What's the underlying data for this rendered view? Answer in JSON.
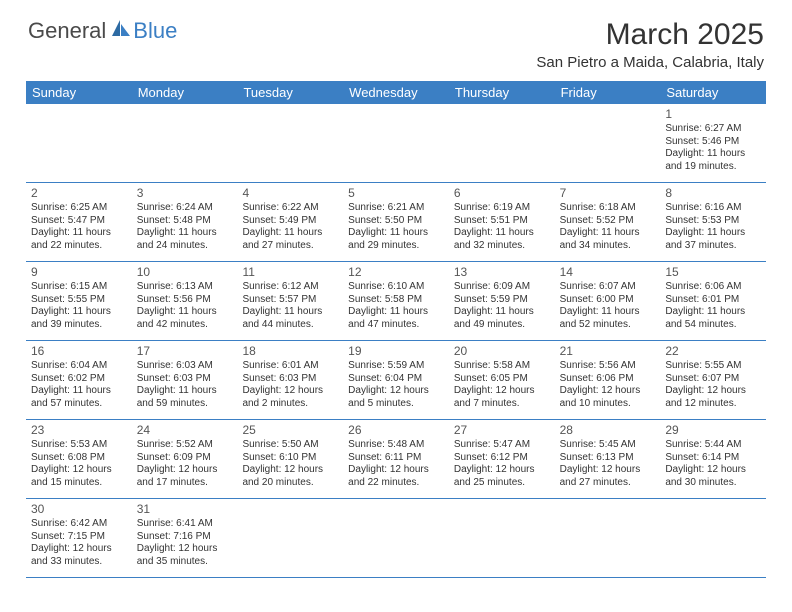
{
  "brand": {
    "part1": "General",
    "part2": "Blue"
  },
  "title": "March 2025",
  "location": "San Pietro a Maida, Calabria, Italy",
  "colors": {
    "header_bg": "#3b7fc4",
    "header_text": "#ffffff",
    "border": "#3b7fc4",
    "text": "#333333",
    "brand_blue": "#3b7fc4",
    "brand_gray": "#4a4a4a"
  },
  "day_names": [
    "Sunday",
    "Monday",
    "Tuesday",
    "Wednesday",
    "Thursday",
    "Friday",
    "Saturday"
  ],
  "weeks": [
    [
      null,
      null,
      null,
      null,
      null,
      null,
      {
        "n": "1",
        "sr": "Sunrise: 6:27 AM",
        "ss": "Sunset: 5:46 PM",
        "d1": "Daylight: 11 hours",
        "d2": "and 19 minutes."
      }
    ],
    [
      {
        "n": "2",
        "sr": "Sunrise: 6:25 AM",
        "ss": "Sunset: 5:47 PM",
        "d1": "Daylight: 11 hours",
        "d2": "and 22 minutes."
      },
      {
        "n": "3",
        "sr": "Sunrise: 6:24 AM",
        "ss": "Sunset: 5:48 PM",
        "d1": "Daylight: 11 hours",
        "d2": "and 24 minutes."
      },
      {
        "n": "4",
        "sr": "Sunrise: 6:22 AM",
        "ss": "Sunset: 5:49 PM",
        "d1": "Daylight: 11 hours",
        "d2": "and 27 minutes."
      },
      {
        "n": "5",
        "sr": "Sunrise: 6:21 AM",
        "ss": "Sunset: 5:50 PM",
        "d1": "Daylight: 11 hours",
        "d2": "and 29 minutes."
      },
      {
        "n": "6",
        "sr": "Sunrise: 6:19 AM",
        "ss": "Sunset: 5:51 PM",
        "d1": "Daylight: 11 hours",
        "d2": "and 32 minutes."
      },
      {
        "n": "7",
        "sr": "Sunrise: 6:18 AM",
        "ss": "Sunset: 5:52 PM",
        "d1": "Daylight: 11 hours",
        "d2": "and 34 minutes."
      },
      {
        "n": "8",
        "sr": "Sunrise: 6:16 AM",
        "ss": "Sunset: 5:53 PM",
        "d1": "Daylight: 11 hours",
        "d2": "and 37 minutes."
      }
    ],
    [
      {
        "n": "9",
        "sr": "Sunrise: 6:15 AM",
        "ss": "Sunset: 5:55 PM",
        "d1": "Daylight: 11 hours",
        "d2": "and 39 minutes."
      },
      {
        "n": "10",
        "sr": "Sunrise: 6:13 AM",
        "ss": "Sunset: 5:56 PM",
        "d1": "Daylight: 11 hours",
        "d2": "and 42 minutes."
      },
      {
        "n": "11",
        "sr": "Sunrise: 6:12 AM",
        "ss": "Sunset: 5:57 PM",
        "d1": "Daylight: 11 hours",
        "d2": "and 44 minutes."
      },
      {
        "n": "12",
        "sr": "Sunrise: 6:10 AM",
        "ss": "Sunset: 5:58 PM",
        "d1": "Daylight: 11 hours",
        "d2": "and 47 minutes."
      },
      {
        "n": "13",
        "sr": "Sunrise: 6:09 AM",
        "ss": "Sunset: 5:59 PM",
        "d1": "Daylight: 11 hours",
        "d2": "and 49 minutes."
      },
      {
        "n": "14",
        "sr": "Sunrise: 6:07 AM",
        "ss": "Sunset: 6:00 PM",
        "d1": "Daylight: 11 hours",
        "d2": "and 52 minutes."
      },
      {
        "n": "15",
        "sr": "Sunrise: 6:06 AM",
        "ss": "Sunset: 6:01 PM",
        "d1": "Daylight: 11 hours",
        "d2": "and 54 minutes."
      }
    ],
    [
      {
        "n": "16",
        "sr": "Sunrise: 6:04 AM",
        "ss": "Sunset: 6:02 PM",
        "d1": "Daylight: 11 hours",
        "d2": "and 57 minutes."
      },
      {
        "n": "17",
        "sr": "Sunrise: 6:03 AM",
        "ss": "Sunset: 6:03 PM",
        "d1": "Daylight: 11 hours",
        "d2": "and 59 minutes."
      },
      {
        "n": "18",
        "sr": "Sunrise: 6:01 AM",
        "ss": "Sunset: 6:03 PM",
        "d1": "Daylight: 12 hours",
        "d2": "and 2 minutes."
      },
      {
        "n": "19",
        "sr": "Sunrise: 5:59 AM",
        "ss": "Sunset: 6:04 PM",
        "d1": "Daylight: 12 hours",
        "d2": "and 5 minutes."
      },
      {
        "n": "20",
        "sr": "Sunrise: 5:58 AM",
        "ss": "Sunset: 6:05 PM",
        "d1": "Daylight: 12 hours",
        "d2": "and 7 minutes."
      },
      {
        "n": "21",
        "sr": "Sunrise: 5:56 AM",
        "ss": "Sunset: 6:06 PM",
        "d1": "Daylight: 12 hours",
        "d2": "and 10 minutes."
      },
      {
        "n": "22",
        "sr": "Sunrise: 5:55 AM",
        "ss": "Sunset: 6:07 PM",
        "d1": "Daylight: 12 hours",
        "d2": "and 12 minutes."
      }
    ],
    [
      {
        "n": "23",
        "sr": "Sunrise: 5:53 AM",
        "ss": "Sunset: 6:08 PM",
        "d1": "Daylight: 12 hours",
        "d2": "and 15 minutes."
      },
      {
        "n": "24",
        "sr": "Sunrise: 5:52 AM",
        "ss": "Sunset: 6:09 PM",
        "d1": "Daylight: 12 hours",
        "d2": "and 17 minutes."
      },
      {
        "n": "25",
        "sr": "Sunrise: 5:50 AM",
        "ss": "Sunset: 6:10 PM",
        "d1": "Daylight: 12 hours",
        "d2": "and 20 minutes."
      },
      {
        "n": "26",
        "sr": "Sunrise: 5:48 AM",
        "ss": "Sunset: 6:11 PM",
        "d1": "Daylight: 12 hours",
        "d2": "and 22 minutes."
      },
      {
        "n": "27",
        "sr": "Sunrise: 5:47 AM",
        "ss": "Sunset: 6:12 PM",
        "d1": "Daylight: 12 hours",
        "d2": "and 25 minutes."
      },
      {
        "n": "28",
        "sr": "Sunrise: 5:45 AM",
        "ss": "Sunset: 6:13 PM",
        "d1": "Daylight: 12 hours",
        "d2": "and 27 minutes."
      },
      {
        "n": "29",
        "sr": "Sunrise: 5:44 AM",
        "ss": "Sunset: 6:14 PM",
        "d1": "Daylight: 12 hours",
        "d2": "and 30 minutes."
      }
    ],
    [
      {
        "n": "30",
        "sr": "Sunrise: 6:42 AM",
        "ss": "Sunset: 7:15 PM",
        "d1": "Daylight: 12 hours",
        "d2": "and 33 minutes."
      },
      {
        "n": "31",
        "sr": "Sunrise: 6:41 AM",
        "ss": "Sunset: 7:16 PM",
        "d1": "Daylight: 12 hours",
        "d2": "and 35 minutes."
      },
      null,
      null,
      null,
      null,
      null
    ]
  ]
}
